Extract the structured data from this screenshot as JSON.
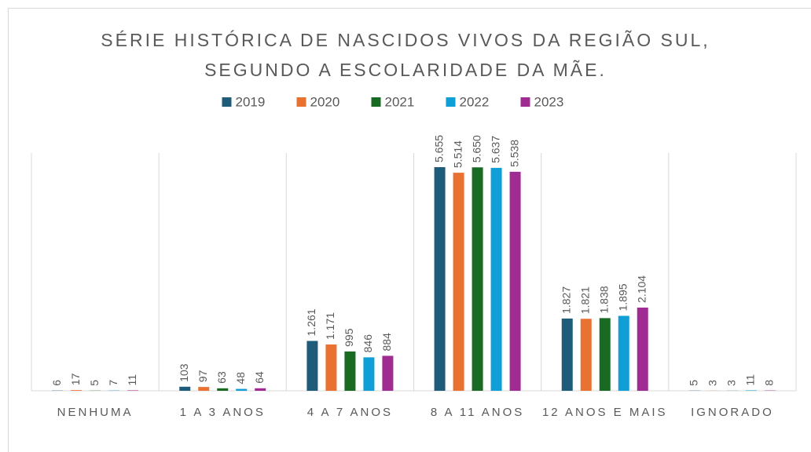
{
  "chart_data": {
    "type": "bar",
    "title": "SÉRIE HISTÓRICA DE NASCIDOS VIVOS DA REGIÃO SUL, SEGUNDO A ESCOLARIDADE DA MÃE.",
    "categories": [
      "NENHUMA",
      "1 A 3 ANOS",
      "4 A 7 ANOS",
      "8 A 11 ANOS",
      "12 ANOS E MAIS",
      "IGNORADO"
    ],
    "series": [
      {
        "name": "2019",
        "color": "#1f5c7a",
        "values": [
          6,
          103,
          1261,
          5655,
          1827,
          5
        ],
        "value_labels": [
          "6",
          "103",
          "1.261",
          "5.655",
          "1.827",
          "5"
        ]
      },
      {
        "name": "2020",
        "color": "#e97132",
        "values": [
          17,
          97,
          1171,
          5514,
          1821,
          3
        ],
        "value_labels": [
          "17",
          "97",
          "1.171",
          "5.514",
          "1.821",
          "3"
        ]
      },
      {
        "name": "2021",
        "color": "#196b24",
        "values": [
          5,
          63,
          995,
          5650,
          1838,
          3
        ],
        "value_labels": [
          "5",
          "63",
          "995",
          "5.650",
          "1.838",
          "3"
        ]
      },
      {
        "name": "2022",
        "color": "#0f9ed5",
        "values": [
          7,
          48,
          846,
          5637,
          1895,
          11
        ],
        "value_labels": [
          "7",
          "48",
          "846",
          "5.637",
          "1.895",
          "11"
        ]
      },
      {
        "name": "2023",
        "color": "#a02b93",
        "values": [
          11,
          64,
          884,
          5538,
          2104,
          8
        ],
        "value_labels": [
          "11",
          "64",
          "884",
          "5.538",
          "2.104",
          "8"
        ]
      }
    ],
    "legend": "top"
  }
}
